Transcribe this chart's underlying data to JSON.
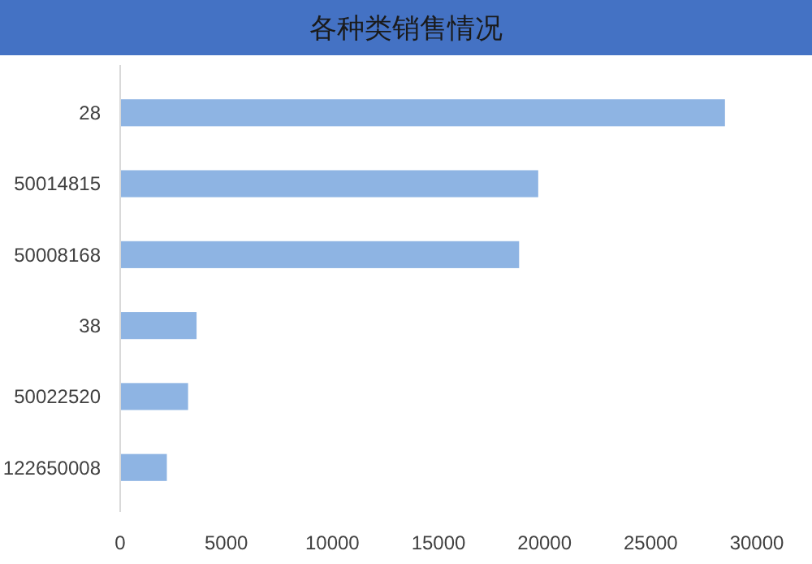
{
  "chart_data": {
    "type": "bar",
    "orientation": "horizontal",
    "title": "各种类销售情况",
    "categories": [
      "28",
      "50014815",
      "50008168",
      "38",
      "50022520",
      "122650008"
    ],
    "values": [
      28500,
      19700,
      18800,
      3600,
      3200,
      2200
    ],
    "color": "#8eb4e3",
    "xlim": [
      0,
      30000
    ],
    "xticks": [
      0,
      5000,
      10000,
      15000,
      20000,
      25000,
      30000
    ],
    "grid": false
  }
}
